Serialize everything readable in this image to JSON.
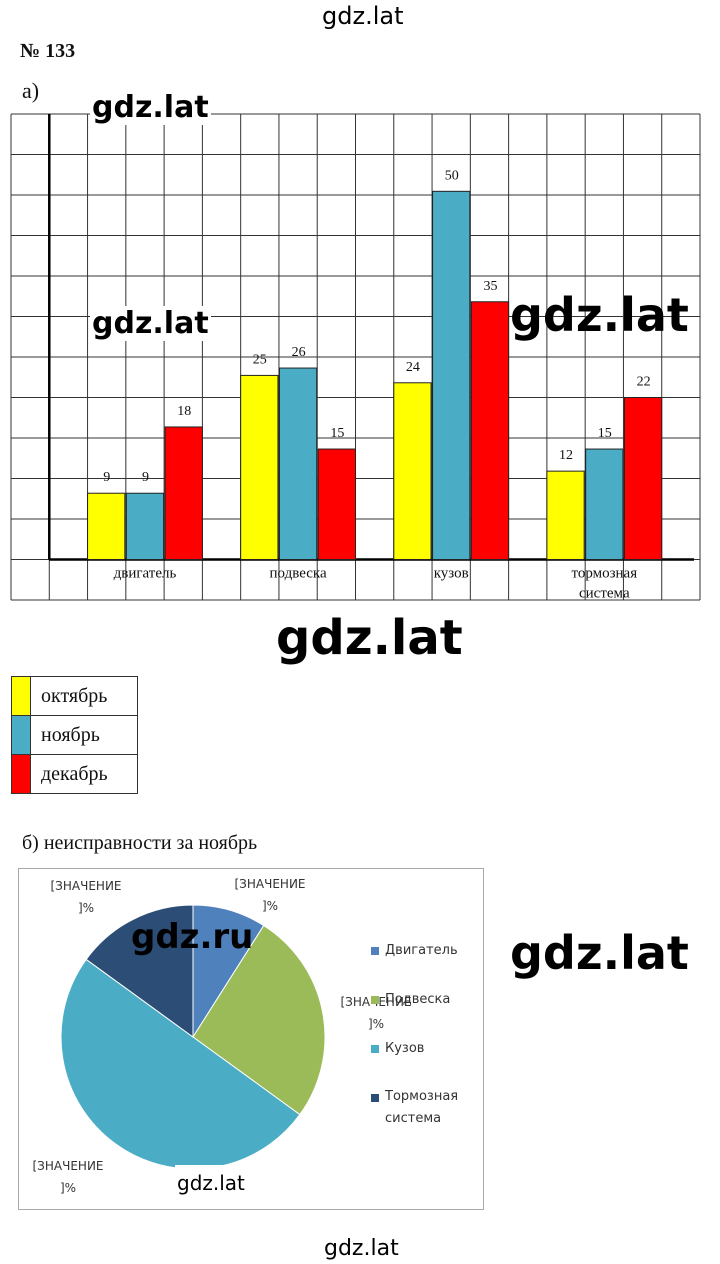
{
  "watermarks": {
    "top": "gdz.lat",
    "chart_tl1": "gdz.lat",
    "chart_tl2": "gdz.lat",
    "chart_right": "gdz.lat",
    "under_chart": "gdz.lat",
    "pie_left": "gdz.ru",
    "pie_right": "gdz.lat",
    "pie_bottom": "gdz.lat",
    "bottom": "gdz.lat"
  },
  "problem_number": "№ 133",
  "part_a_label": "а)",
  "part_b_label": "б) неисправности за ноябрь",
  "chart_data": [
    {
      "type": "bar",
      "categories": [
        "двигатель",
        "подвеска",
        "кузов",
        "тормозная система"
      ],
      "category_lines": [
        [
          "двигатель"
        ],
        [
          "подвеска"
        ],
        [
          "кузов"
        ],
        [
          "тормозная",
          "система"
        ]
      ],
      "series": [
        {
          "name": "октябрь",
          "color": "#ffff00",
          "values": [
            9,
            25,
            24,
            12
          ]
        },
        {
          "name": "ноябрь",
          "color": "#4bacc6",
          "values": [
            9,
            26,
            50,
            15
          ]
        },
        {
          "name": "декабрь",
          "color": "#ff0000",
          "values": [
            18,
            15,
            35,
            22
          ]
        }
      ],
      "ylim": [
        0,
        55
      ],
      "grid": true,
      "legend": "below-left"
    },
    {
      "type": "pie",
      "categories": [
        "Двигатель",
        "Подвеска",
        "Кузов",
        "Тормозная система"
      ],
      "legend_lines": [
        [
          "Двигатель"
        ],
        [
          "Подвеска"
        ],
        [
          "Кузов"
        ],
        [
          "Тормозная",
          "система"
        ]
      ],
      "values": [
        9,
        26,
        50,
        15
      ],
      "colors": [
        "#4f81bd",
        "#9bbb59",
        "#4bacc6",
        "#2c4d75"
      ],
      "data_labels": [
        "[ЗНАЧЕНИЕ ]%",
        "[ЗНАЧЕНИЕ ]%",
        "[ЗНАЧЕНИЕ ]%",
        "[ЗНАЧЕНИЕ ]%"
      ],
      "legend": "right"
    }
  ]
}
